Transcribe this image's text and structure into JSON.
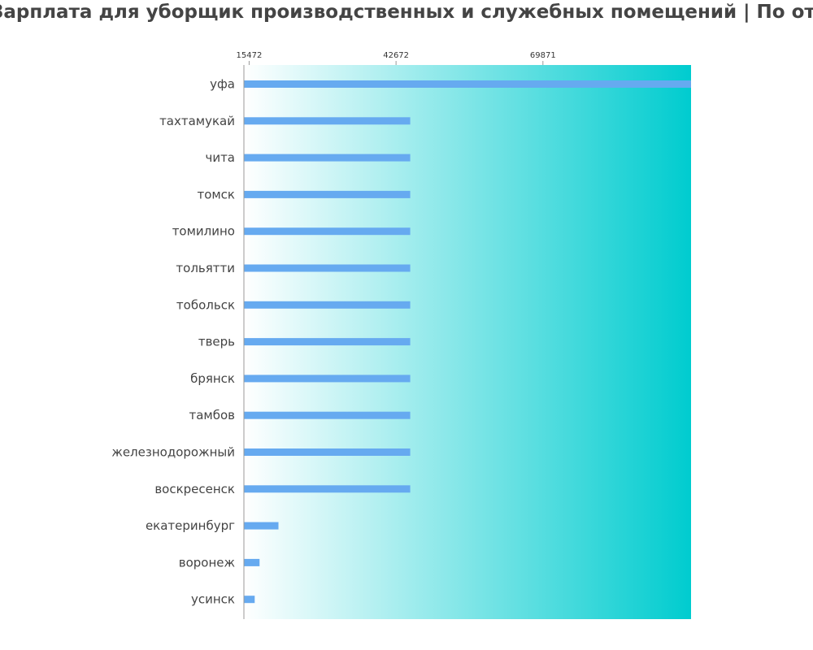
{
  "chart_data": {
    "type": "bar",
    "orientation": "horizontal",
    "title": "Зарплата для уборщик производственных и служебных помещений | По отзывам",
    "categories": [
      "уфа",
      "тахтамукай",
      "чита",
      "томск",
      "томилино",
      "тольятти",
      "тобольск",
      "тверь",
      "брянск",
      "тамбов",
      "железнодорожный",
      "воскресенск",
      "екатеринбург",
      "воронеж",
      "усинск"
    ],
    "values": [
      98700,
      45300,
      45300,
      45300,
      45300,
      45300,
      45300,
      45300,
      45300,
      45300,
      45300,
      45300,
      20900,
      17400,
      16500
    ],
    "x_ticks": [
      15472,
      42672,
      69871
    ],
    "xlim": [
      14500,
      97300
    ],
    "bar_color": "#66aaf0",
    "background_gradient": [
      "#ffffff",
      "#00cccf"
    ],
    "xlabel": "",
    "ylabel": "",
    "grid": false
  }
}
